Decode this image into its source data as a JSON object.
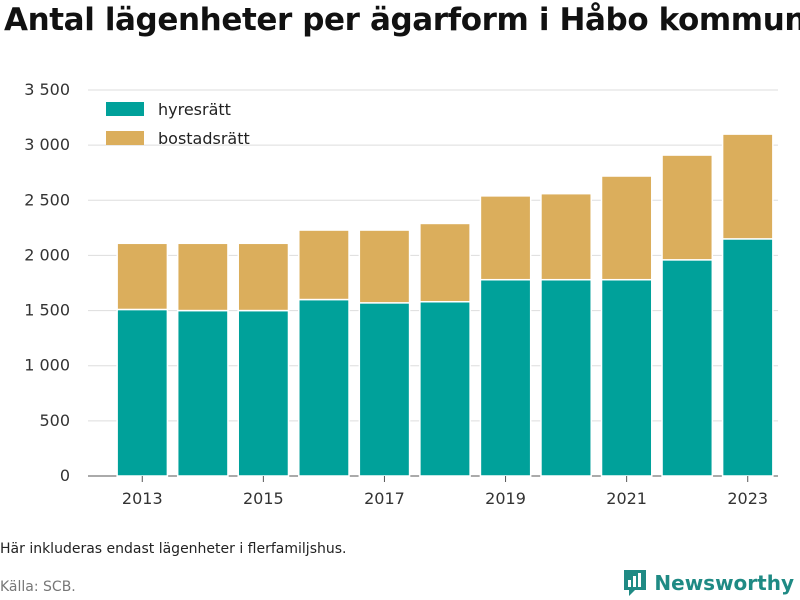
{
  "header": {
    "title": "Antal lägenheter per ägarform i Håbo kommun"
  },
  "footer": {
    "note": "Här inkluderas endast lägenheter i flerfamiljshus.",
    "source": "Källa: SCB.",
    "brand": "Newsworthy"
  },
  "colors": {
    "hyresratt": "#00a19a",
    "bostadsratt": "#dbae5c",
    "grid": "#dddddd",
    "brand": "#1f8a84"
  },
  "chart_data": {
    "type": "bar",
    "stacked": true,
    "title": "Antal lägenheter per ägarform i Håbo kommun",
    "xlabel": "",
    "ylabel": "",
    "categories": [
      "2013",
      "2014",
      "2015",
      "2016",
      "2017",
      "2018",
      "2019",
      "2020",
      "2021",
      "2022",
      "2023"
    ],
    "x_tick_labels": [
      "2013",
      "2015",
      "2017",
      "2019",
      "2021",
      "2023"
    ],
    "y_ticks": [
      0,
      500,
      1000,
      1500,
      2000,
      2500,
      3000,
      3500
    ],
    "y_tick_labels": [
      "0",
      "500",
      "1 000",
      "1 500",
      "2 000",
      "2 500",
      "3 000",
      "3 500"
    ],
    "ylim": [
      0,
      3500
    ],
    "grid": true,
    "legend_position": "top-left",
    "series": [
      {
        "name": "hyresrätt",
        "color": "#00a19a",
        "values": [
          1510,
          1500,
          1500,
          1600,
          1570,
          1580,
          1780,
          1780,
          1780,
          1960,
          2150
        ]
      },
      {
        "name": "bostadsrätt",
        "color": "#dbae5c",
        "values": [
          600,
          610,
          610,
          630,
          660,
          710,
          760,
          780,
          940,
          950,
          950
        ]
      }
    ]
  }
}
